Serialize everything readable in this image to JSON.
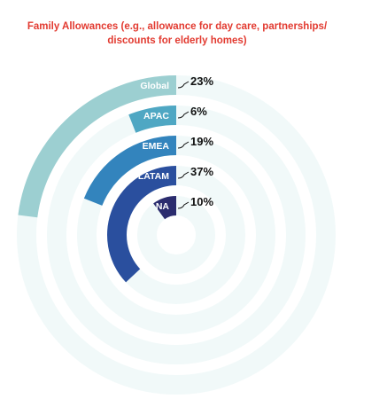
{
  "chart_data": {
    "type": "radial-bar",
    "title_lines": [
      "Family Allowances (e.g., allowance for day care, partnerships/",
      "discounts for elderly homes)"
    ],
    "max_value": 100,
    "categories": [
      "Global",
      "APAC",
      "EMEA",
      "LATAM",
      "NA"
    ],
    "values": [
      23,
      6,
      19,
      37,
      10
    ],
    "value_labels": [
      "23%",
      "6%",
      "19%",
      "37%",
      "10%"
    ],
    "colors": [
      "#9ccfd1",
      "#4fa7c3",
      "#3384bd",
      "#2a4f9e",
      "#2b2c6e"
    ],
    "track_color": "#f1f9f9",
    "title_color": "#e23a30"
  }
}
